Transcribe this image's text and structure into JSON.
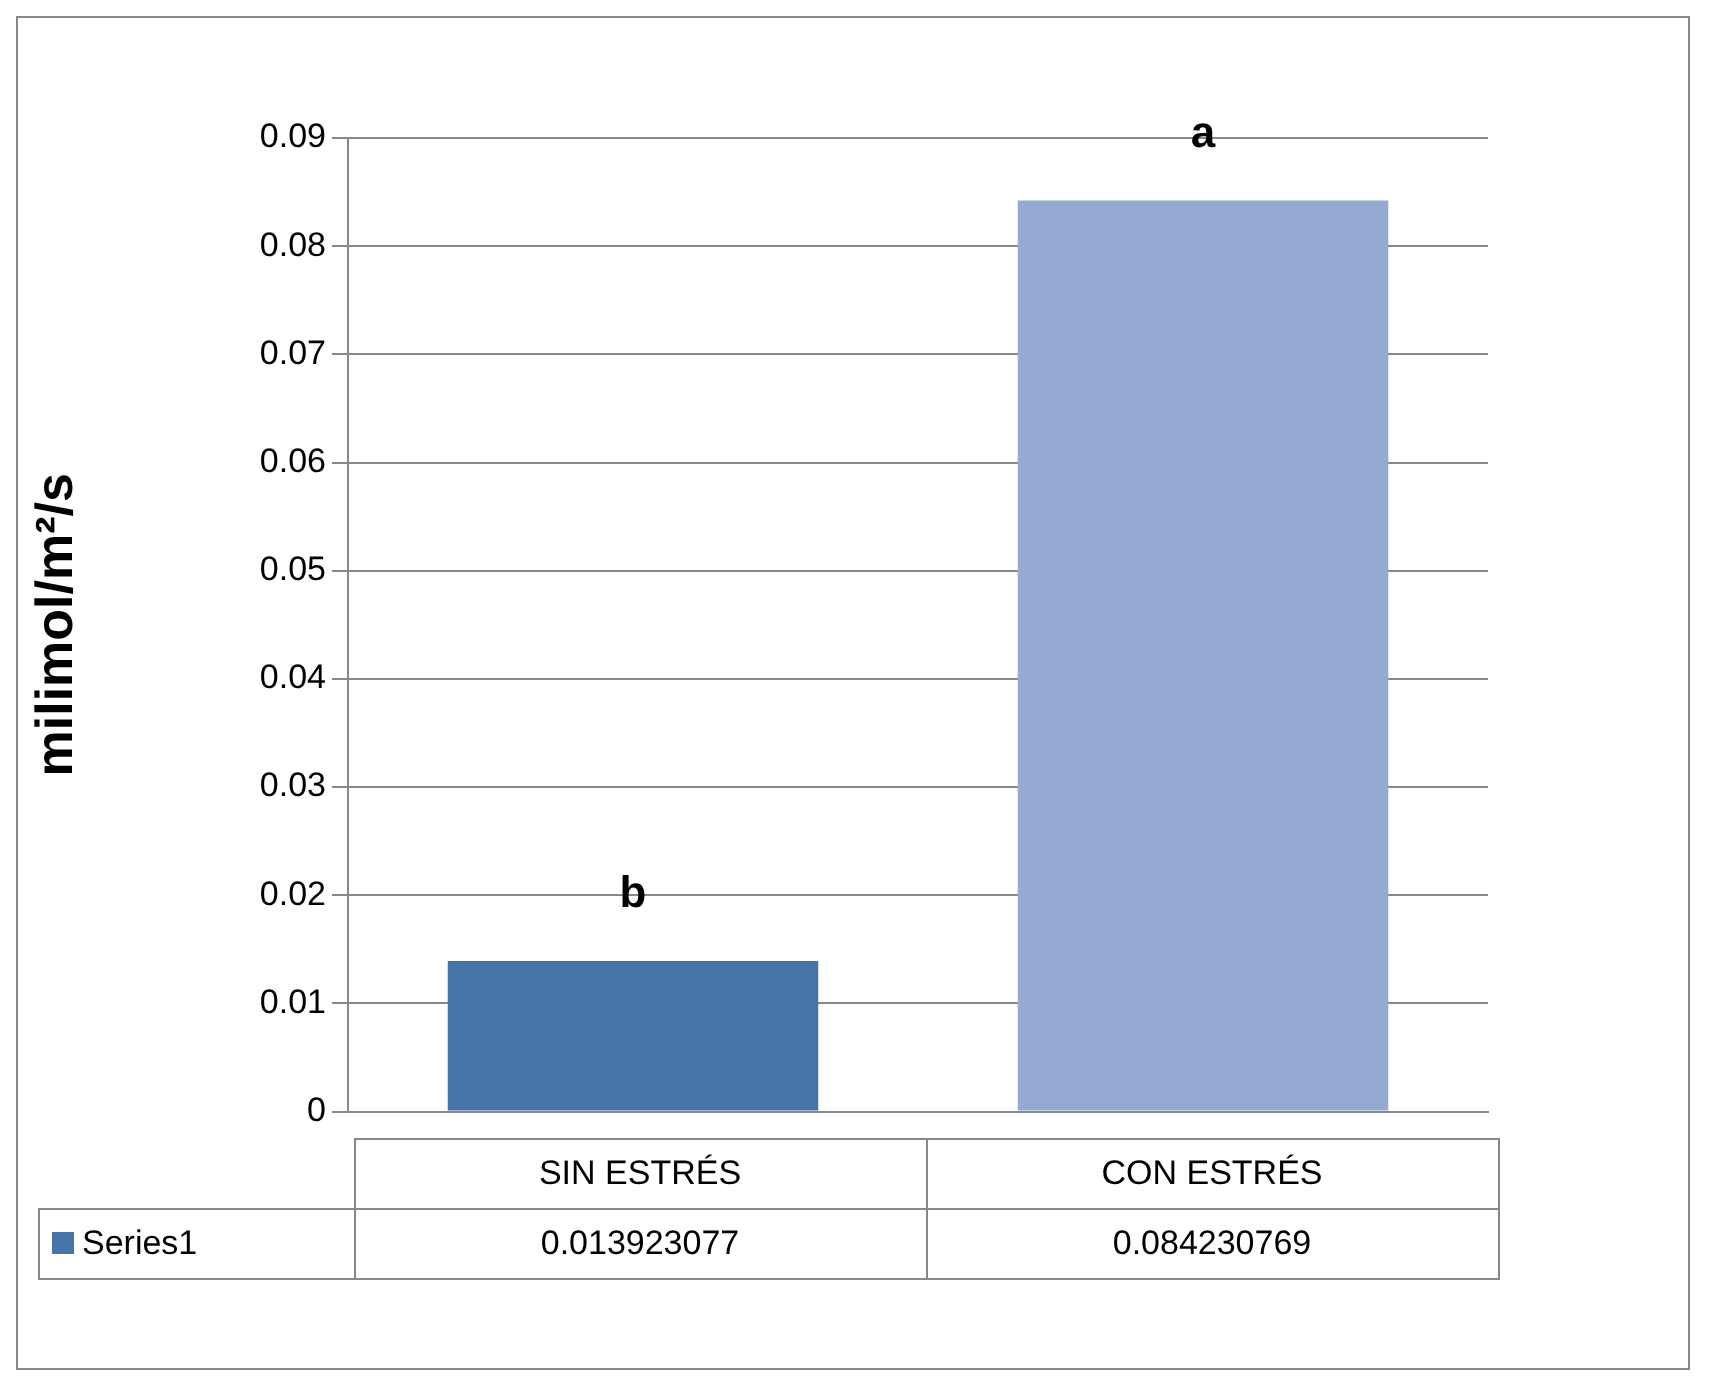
{
  "chart_data": {
    "type": "bar",
    "ylabel": "milimol/m²/s",
    "categories": [
      "SIN ESTRÉS",
      "CON ESTRÉS"
    ],
    "series": [
      {
        "name": "Series1",
        "color": "#4673a8",
        "colors": [
          "#4673a8",
          "#95aad2"
        ],
        "values": [
          0.013923077,
          0.084230769
        ]
      }
    ],
    "ylim": [
      0,
      0.09
    ],
    "yticks": [
      0,
      0.01,
      0.02,
      0.03,
      0.04,
      0.05,
      0.06,
      0.07,
      0.08,
      0.09
    ],
    "grid": "y",
    "legend": "bottom",
    "data_labels": true,
    "annotations": [
      {
        "text": "b",
        "x": "SIN ESTRÉS",
        "y": 0.013923077
      },
      {
        "text": "a",
        "x": "CON ESTRÉS",
        "y": 0.084230769
      }
    ]
  }
}
